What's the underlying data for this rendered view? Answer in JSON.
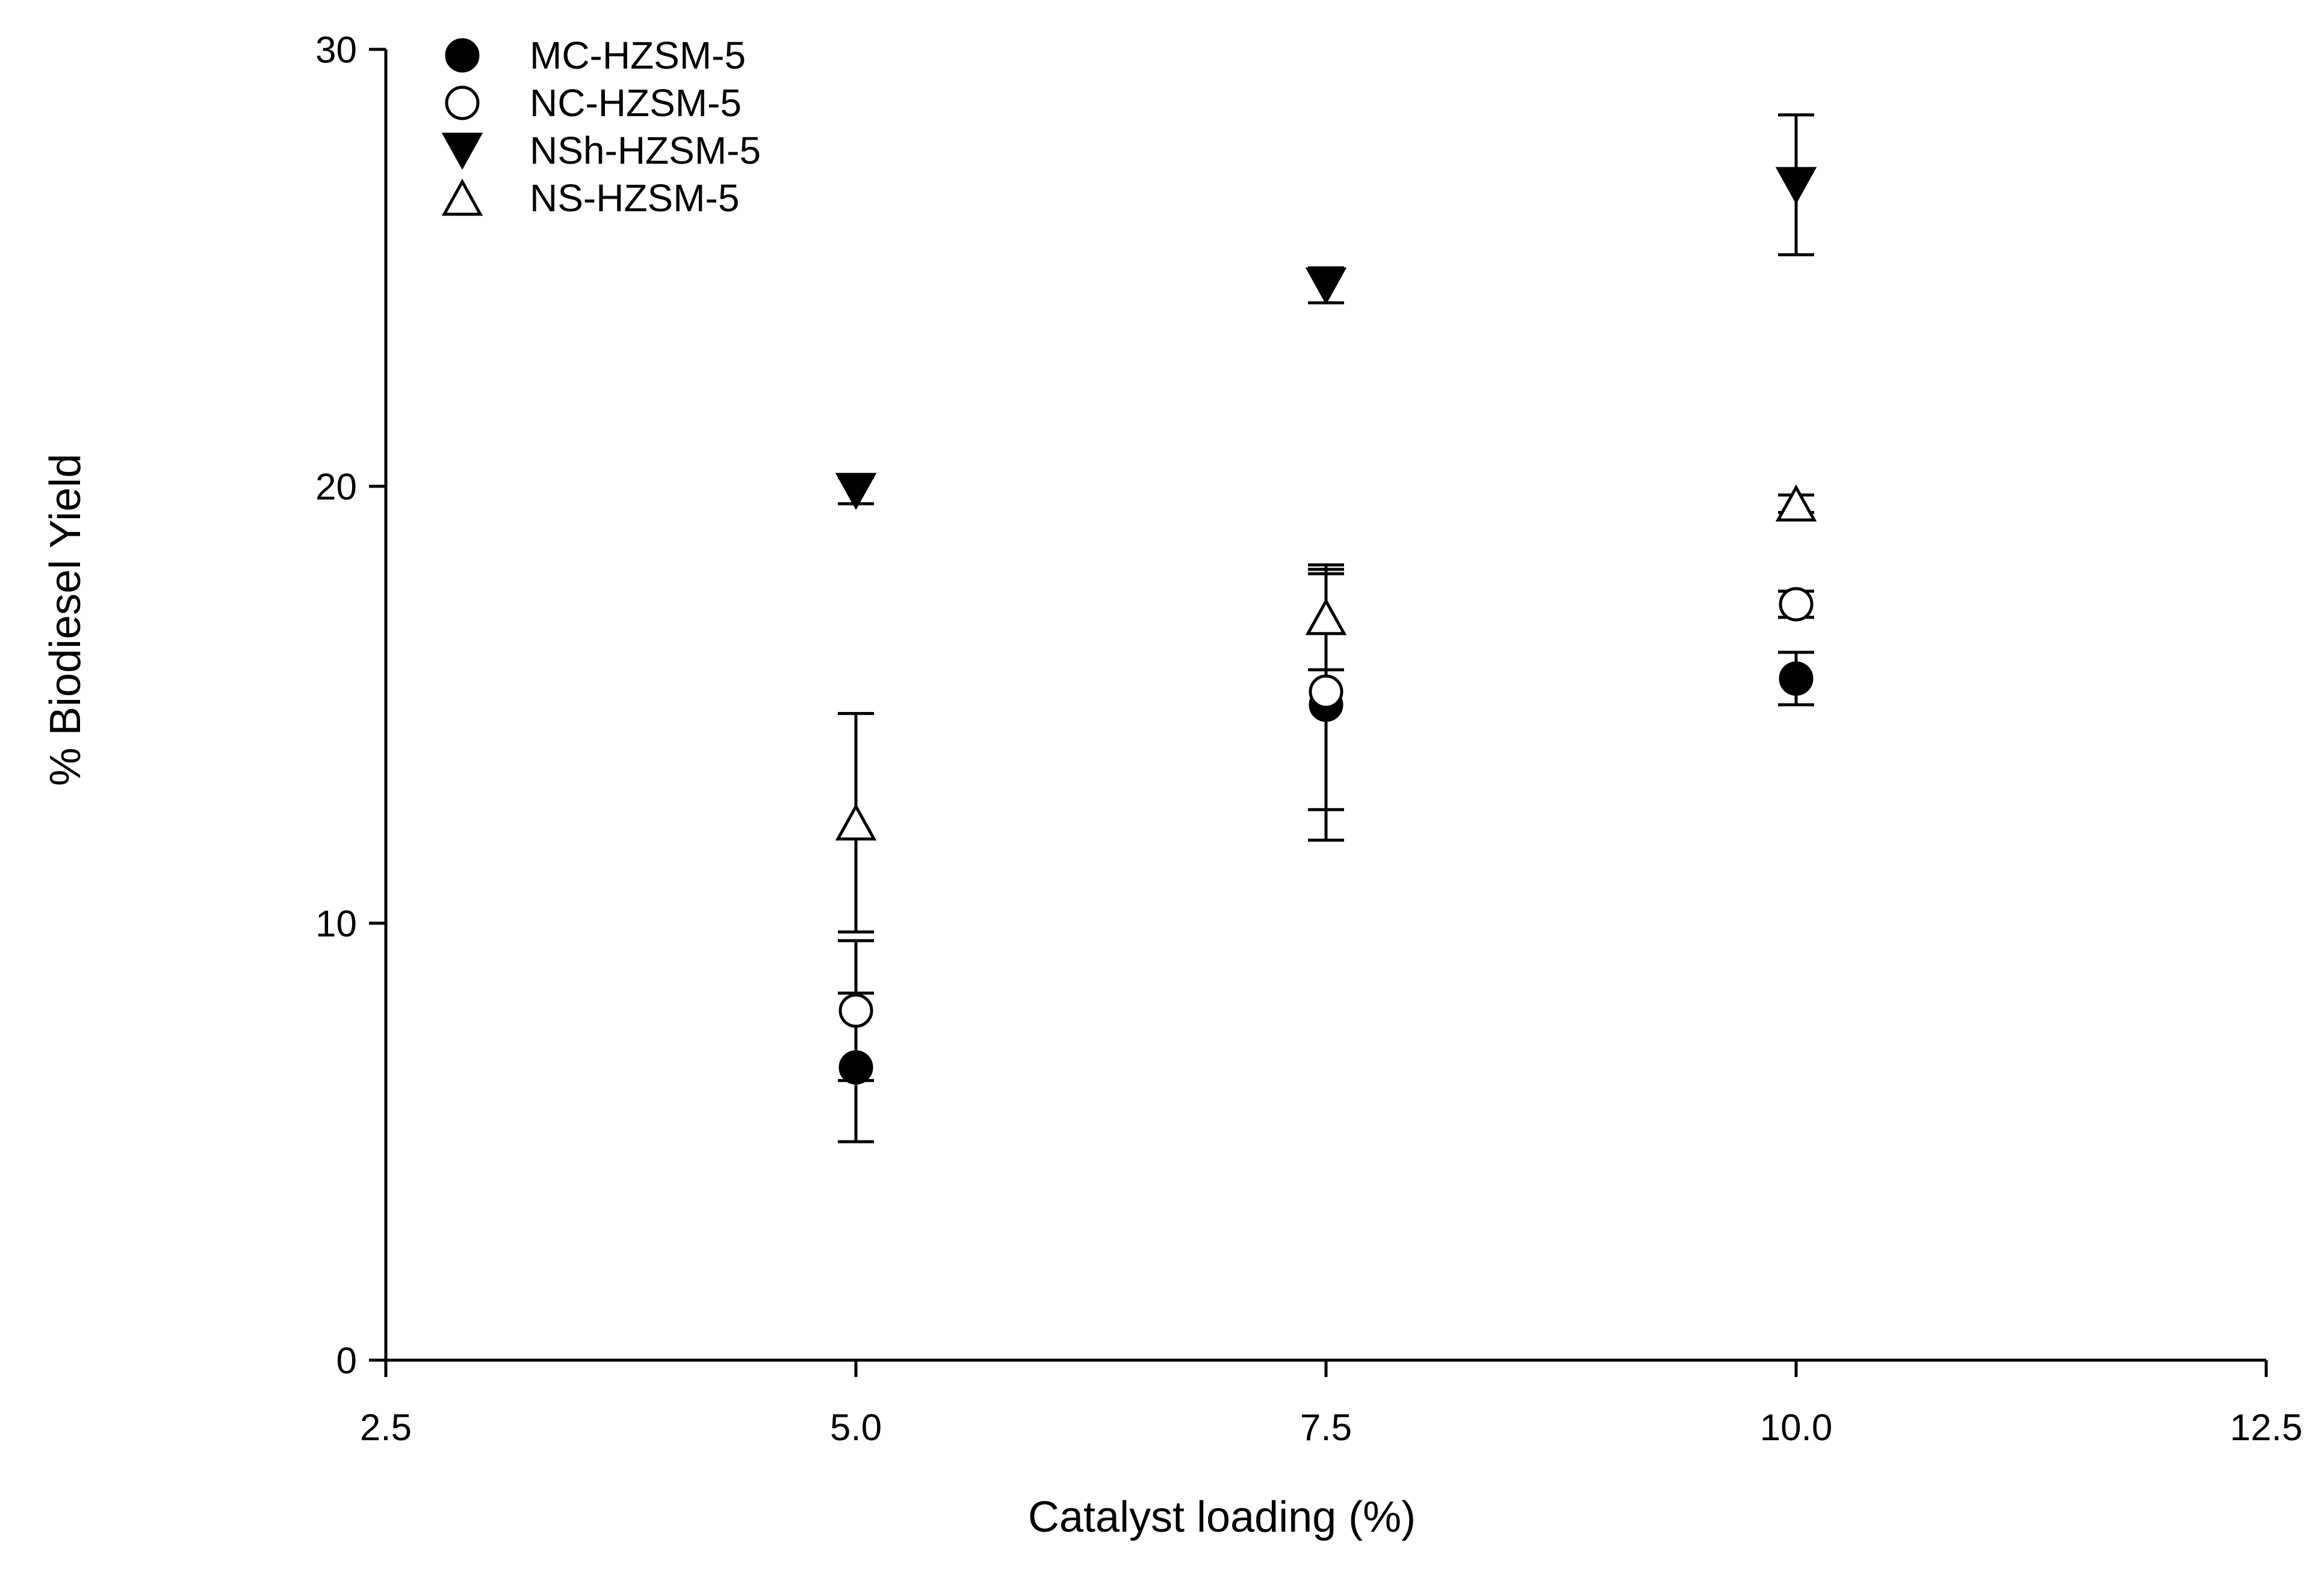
{
  "chart_data": {
    "type": "scatter",
    "title": "",
    "xlabel": "Catalyst loading (%)",
    "ylabel": "% Biodiesel Yield",
    "xlim": [
      2.5,
      12.5
    ],
    "ylim": [
      0,
      30
    ],
    "xticks": [
      2.5,
      5.0,
      7.5,
      10.0,
      12.5
    ],
    "xtick_labels": [
      "2.5",
      "5.0",
      "7.5",
      "10.0",
      "12.5"
    ],
    "yticks": [
      0,
      10,
      20,
      30
    ],
    "ytick_labels": [
      "0",
      "10",
      "20",
      "30"
    ],
    "grid": false,
    "legend_position": "top-left",
    "series": [
      {
        "name": "MC-HZSM-5",
        "marker": "filled-circle",
        "x": [
          5.0,
          7.5,
          10.0
        ],
        "y": [
          6.7,
          15.0,
          15.6
        ],
        "error": [
          1.7,
          3.1,
          0.6
        ]
      },
      {
        "name": "NC-HZSM-5",
        "marker": "open-circle",
        "x": [
          5.0,
          7.5,
          10.0
        ],
        "y": [
          8.0,
          15.3,
          17.3
        ],
        "error": [
          1.6,
          2.7,
          0.3
        ]
      },
      {
        "name": "NSh-HZSM-5",
        "marker": "filled-triangle-down",
        "x": [
          5.0,
          7.5,
          10.0
        ],
        "y": [
          19.9,
          24.6,
          26.9
        ],
        "error": [
          0.3,
          0.4,
          1.6
        ]
      },
      {
        "name": "NS-HZSM-5",
        "marker": "open-triangle-up",
        "x": [
          5.0,
          7.5,
          10.0
        ],
        "y": [
          12.3,
          17.0,
          19.6
        ],
        "error": [
          2.5,
          1.2,
          0.2
        ]
      }
    ],
    "colors": {
      "axis": "#000000",
      "marker_fill": "#000000",
      "marker_open_fill": "#ffffff"
    }
  }
}
